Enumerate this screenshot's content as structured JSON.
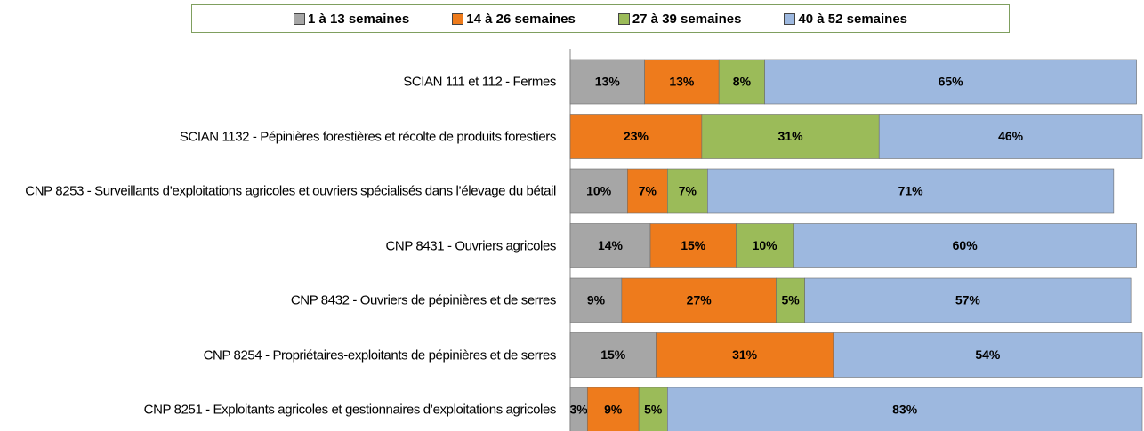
{
  "chart_data": {
    "type": "stacked-barh",
    "categories": [
      "SCIAN 111 et 112 - Fermes",
      "SCIAN 1132 - Pépinières forestières et récolte de produits forestiers",
      "CNP 8253 - Surveillants d’exploitations agricoles et ouvriers spécialisés dans l’élevage du bétail",
      "CNP 8431 - Ouvriers agricoles",
      "CNP 8432 - Ouvriers de pépinières et de serres",
      "CNP 8254 - Propriétaires-exploitants de pépinières et de serres",
      "CNP 8251 - Exploitants agricoles et gestionnaires d’exploitations agricoles"
    ],
    "series": [
      {
        "name": "1 à 13 semaines",
        "color": "#a6a6a6",
        "values": [
          13,
          null,
          10,
          14,
          9,
          15,
          3
        ],
        "value_labels": [
          "13%",
          null,
          "10%",
          "14%",
          "9%",
          "15%",
          "3%"
        ]
      },
      {
        "name": "14 à 26 semaines",
        "color": "#ee7b1c",
        "values": [
          13,
          23,
          7,
          15,
          27,
          31,
          9
        ],
        "value_labels": [
          "13%",
          "23%",
          "7%",
          "15%",
          "27%",
          "31%",
          "9%"
        ]
      },
      {
        "name": "27 à 39 semaines",
        "color": "#9bbb59",
        "values": [
          8,
          31,
          7,
          10,
          5,
          null,
          5
        ],
        "value_labels": [
          "8%",
          "31%",
          "7%",
          "10%",
          "5%",
          null,
          "5%"
        ]
      },
      {
        "name": "40 à 52 semaines",
        "color": "#9db8df",
        "values": [
          65,
          46,
          71,
          60,
          57,
          54,
          83
        ],
        "value_labels": [
          "65%",
          "46%",
          "71%",
          "60%",
          "57%",
          "54%",
          "83%"
        ]
      }
    ],
    "xlim": [
      0,
      100
    ],
    "legend": "top"
  }
}
